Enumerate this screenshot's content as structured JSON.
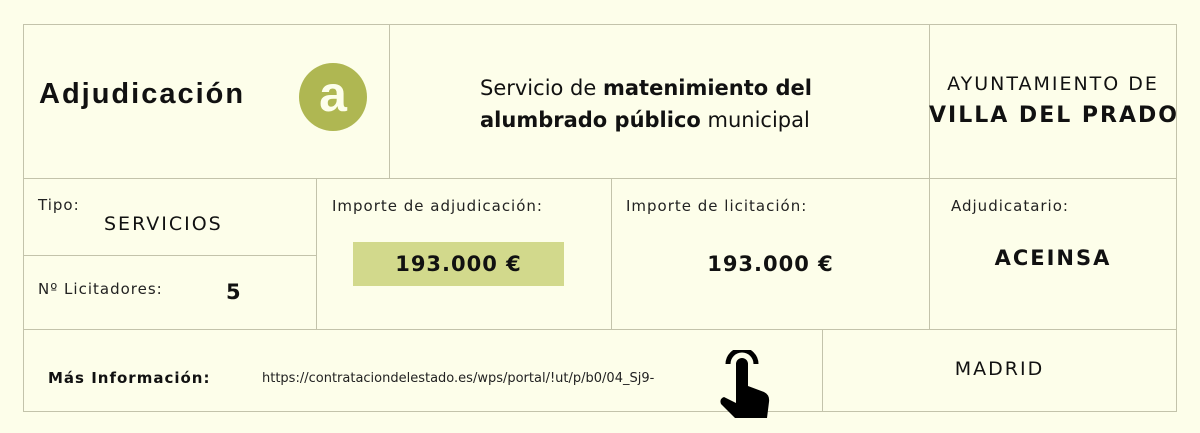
{
  "title": "Adjudicación",
  "badge_letter": "a",
  "service": {
    "line1_pre": "Servicio de ",
    "line1_bold": "matenimiento del",
    "line2_bold": "alumbrado público",
    "line2_post": " municipal"
  },
  "org": {
    "line1": "AYUNTAMIENTO DE",
    "line2": "VILLA DEL PRADO"
  },
  "tipo": {
    "label": "Tipo:",
    "value": "SERVICIOS"
  },
  "licitadores": {
    "label": "Nº Licitadores:",
    "value": "5"
  },
  "adjudicacion": {
    "label": "Importe de adjudicación:",
    "value": "193.000 €"
  },
  "licitacion": {
    "label": "Importe de licitación:",
    "value": "193.000 €"
  },
  "adjudicatario": {
    "label": "Adjudicatario:",
    "value": "ACEINSA"
  },
  "info": {
    "label": "Más Información:",
    "url": "https://contrataciondelestado.es/wps/portal/!ut/p/b0/04_Sj9-",
    "icon": "pointing-hand-icon"
  },
  "location": "MADRID",
  "colors": {
    "accent": "#afb752",
    "highlight": "#d2d98c",
    "background": "#fdfeea"
  }
}
